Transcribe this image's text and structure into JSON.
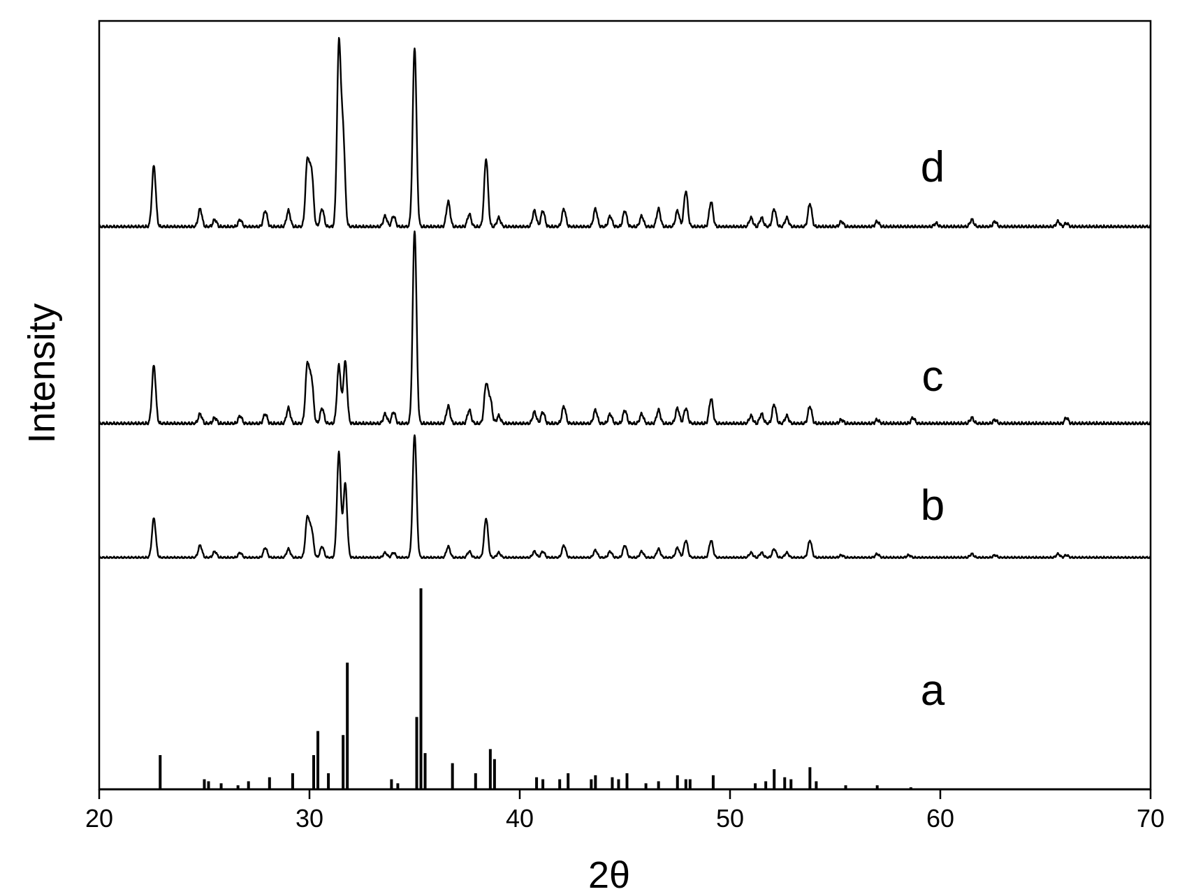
{
  "chart_data": {
    "type": "line",
    "xlabel": "2θ",
    "ylabel": "Intensity",
    "xlim": [
      20,
      70
    ],
    "xticks": [
      20,
      30,
      40,
      50,
      60,
      70
    ],
    "xtick_labels": [
      "20",
      "30",
      "40",
      "50",
      "60",
      "70"
    ],
    "y_ticks_shown": false,
    "grid": false,
    "colors": {
      "line": "#000000",
      "background": "#ffffff"
    },
    "series": [
      {
        "name": "d",
        "style": "line",
        "peaks": [
          [
            22.6,
            0.34
          ],
          [
            24.8,
            0.1
          ],
          [
            25.5,
            0.04
          ],
          [
            26.7,
            0.04
          ],
          [
            27.9,
            0.09
          ],
          [
            29.0,
            0.09
          ],
          [
            29.9,
            0.36
          ],
          [
            30.1,
            0.3
          ],
          [
            30.6,
            0.1
          ],
          [
            31.4,
            1.0
          ],
          [
            31.6,
            0.5
          ],
          [
            33.6,
            0.06
          ],
          [
            34.0,
            0.06
          ],
          [
            35.0,
            1.0
          ],
          [
            36.6,
            0.14
          ],
          [
            37.6,
            0.07
          ],
          [
            38.4,
            0.38
          ],
          [
            39.0,
            0.05
          ],
          [
            40.7,
            0.09
          ],
          [
            41.1,
            0.09
          ],
          [
            42.1,
            0.1
          ],
          [
            43.6,
            0.1
          ],
          [
            44.3,
            0.06
          ],
          [
            45.0,
            0.09
          ],
          [
            45.8,
            0.06
          ],
          [
            46.6,
            0.1
          ],
          [
            47.5,
            0.09
          ],
          [
            47.9,
            0.2
          ],
          [
            49.1,
            0.14
          ],
          [
            51.0,
            0.05
          ],
          [
            51.5,
            0.05
          ],
          [
            52.1,
            0.1
          ],
          [
            52.7,
            0.05
          ],
          [
            53.8,
            0.13
          ],
          [
            55.3,
            0.03
          ],
          [
            57.0,
            0.03
          ],
          [
            59.8,
            0.02
          ],
          [
            61.5,
            0.04
          ],
          [
            62.6,
            0.03
          ],
          [
            65.6,
            0.03
          ],
          [
            66.0,
            0.02
          ]
        ]
      },
      {
        "name": "c",
        "style": "line",
        "peaks": [
          [
            22.6,
            0.3
          ],
          [
            24.8,
            0.05
          ],
          [
            25.5,
            0.03
          ],
          [
            26.7,
            0.04
          ],
          [
            27.9,
            0.05
          ],
          [
            29.0,
            0.08
          ],
          [
            29.9,
            0.3
          ],
          [
            30.1,
            0.22
          ],
          [
            30.6,
            0.08
          ],
          [
            31.4,
            0.3
          ],
          [
            31.7,
            0.32
          ],
          [
            33.6,
            0.05
          ],
          [
            34.0,
            0.06
          ],
          [
            35.0,
            1.0
          ],
          [
            36.6,
            0.09
          ],
          [
            37.6,
            0.07
          ],
          [
            38.4,
            0.2
          ],
          [
            38.6,
            0.12
          ],
          [
            39.0,
            0.04
          ],
          [
            40.7,
            0.06
          ],
          [
            41.1,
            0.06
          ],
          [
            42.1,
            0.09
          ],
          [
            43.6,
            0.07
          ],
          [
            44.3,
            0.05
          ],
          [
            45.0,
            0.07
          ],
          [
            45.8,
            0.05
          ],
          [
            46.6,
            0.07
          ],
          [
            47.5,
            0.08
          ],
          [
            47.9,
            0.08
          ],
          [
            49.1,
            0.13
          ],
          [
            51.0,
            0.04
          ],
          [
            51.5,
            0.05
          ],
          [
            52.1,
            0.1
          ],
          [
            52.7,
            0.04
          ],
          [
            53.8,
            0.09
          ],
          [
            55.3,
            0.02
          ],
          [
            57.0,
            0.02
          ],
          [
            58.7,
            0.03
          ],
          [
            61.5,
            0.03
          ],
          [
            62.6,
            0.02
          ],
          [
            66.0,
            0.03
          ]
        ]
      },
      {
        "name": "b",
        "style": "line",
        "peaks": [
          [
            22.6,
            0.32
          ],
          [
            24.8,
            0.1
          ],
          [
            25.5,
            0.05
          ],
          [
            26.7,
            0.04
          ],
          [
            27.9,
            0.08
          ],
          [
            29.0,
            0.07
          ],
          [
            29.9,
            0.32
          ],
          [
            30.1,
            0.22
          ],
          [
            30.6,
            0.09
          ],
          [
            31.4,
            0.85
          ],
          [
            31.7,
            0.6
          ],
          [
            33.6,
            0.04
          ],
          [
            34.0,
            0.04
          ],
          [
            35.0,
            1.0
          ],
          [
            36.6,
            0.09
          ],
          [
            37.6,
            0.05
          ],
          [
            38.4,
            0.32
          ],
          [
            39.0,
            0.04
          ],
          [
            40.7,
            0.05
          ],
          [
            41.1,
            0.05
          ],
          [
            42.1,
            0.1
          ],
          [
            43.6,
            0.06
          ],
          [
            44.3,
            0.05
          ],
          [
            45.0,
            0.1
          ],
          [
            45.8,
            0.05
          ],
          [
            46.6,
            0.07
          ],
          [
            47.5,
            0.08
          ],
          [
            47.9,
            0.14
          ],
          [
            49.1,
            0.14
          ],
          [
            51.0,
            0.04
          ],
          [
            51.5,
            0.04
          ],
          [
            52.1,
            0.07
          ],
          [
            52.7,
            0.04
          ],
          [
            53.8,
            0.14
          ],
          [
            55.3,
            0.02
          ],
          [
            57.0,
            0.03
          ],
          [
            58.5,
            0.02
          ],
          [
            61.5,
            0.03
          ],
          [
            62.6,
            0.02
          ],
          [
            65.6,
            0.03
          ],
          [
            66.0,
            0.02
          ]
        ]
      },
      {
        "name": "a",
        "style": "stick",
        "peaks": [
          [
            22.9,
            0.17
          ],
          [
            25.0,
            0.05
          ],
          [
            25.2,
            0.04
          ],
          [
            25.8,
            0.03
          ],
          [
            26.6,
            0.02
          ],
          [
            27.1,
            0.04
          ],
          [
            28.1,
            0.06
          ],
          [
            29.2,
            0.08
          ],
          [
            30.2,
            0.17
          ],
          [
            30.4,
            0.29
          ],
          [
            30.9,
            0.08
          ],
          [
            31.6,
            0.27
          ],
          [
            31.8,
            0.63
          ],
          [
            33.9,
            0.05
          ],
          [
            34.2,
            0.03
          ],
          [
            35.1,
            0.36
          ],
          [
            35.3,
            1.0
          ],
          [
            35.5,
            0.18
          ],
          [
            36.8,
            0.13
          ],
          [
            37.9,
            0.08
          ],
          [
            38.6,
            0.2
          ],
          [
            38.8,
            0.15
          ],
          [
            40.8,
            0.06
          ],
          [
            41.1,
            0.05
          ],
          [
            41.9,
            0.05
          ],
          [
            42.3,
            0.08
          ],
          [
            43.4,
            0.05
          ],
          [
            43.6,
            0.07
          ],
          [
            44.4,
            0.06
          ],
          [
            44.7,
            0.05
          ],
          [
            45.1,
            0.08
          ],
          [
            46.0,
            0.03
          ],
          [
            46.6,
            0.04
          ],
          [
            47.5,
            0.07
          ],
          [
            47.9,
            0.05
          ],
          [
            48.1,
            0.05
          ],
          [
            49.2,
            0.07
          ],
          [
            51.2,
            0.03
          ],
          [
            51.7,
            0.04
          ],
          [
            52.1,
            0.1
          ],
          [
            52.6,
            0.06
          ],
          [
            52.9,
            0.05
          ],
          [
            53.8,
            0.11
          ],
          [
            54.1,
            0.04
          ],
          [
            55.5,
            0.02
          ],
          [
            57.0,
            0.02
          ],
          [
            58.6,
            0.01
          ]
        ]
      }
    ]
  }
}
